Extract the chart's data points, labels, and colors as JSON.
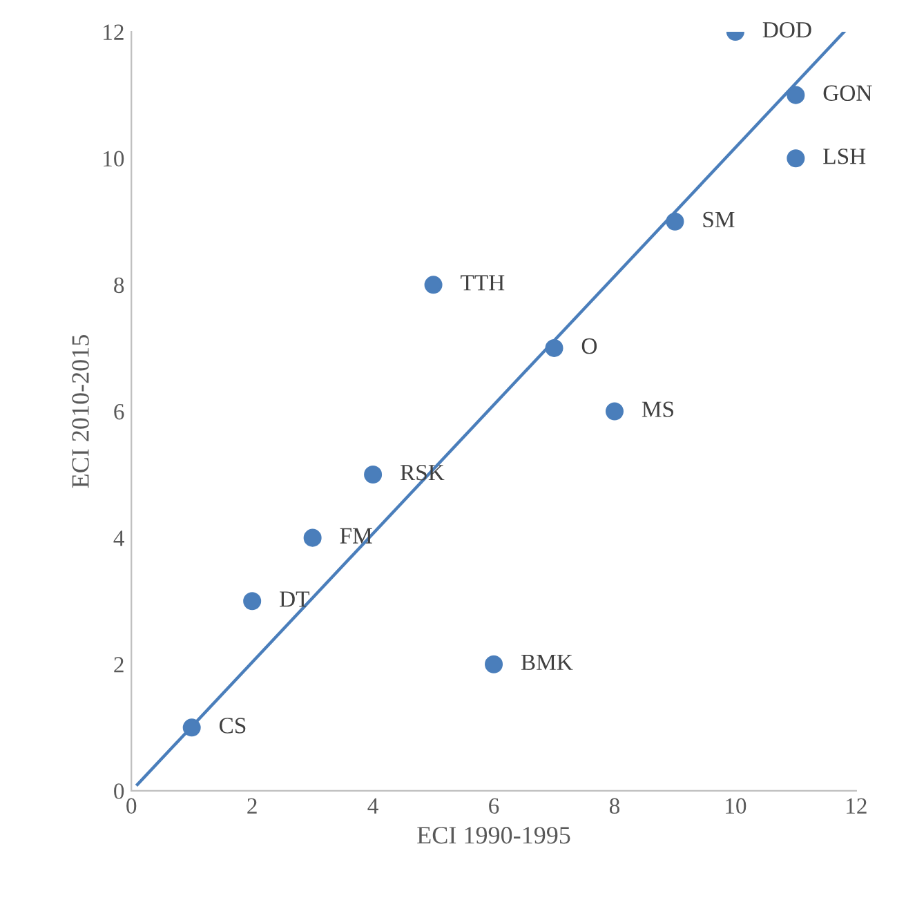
{
  "chart_data": {
    "type": "scatter",
    "xlabel": "ECI 1990-1995",
    "ylabel": "ECI 2010-2015",
    "xlim": [
      0,
      12
    ],
    "ylim": [
      0,
      12
    ],
    "xticks": [
      0,
      2,
      4,
      6,
      8,
      10,
      12
    ],
    "yticks": [
      0,
      2,
      4,
      6,
      8,
      10,
      12
    ],
    "grid": false,
    "legend": false,
    "series": [
      {
        "marker": "circle",
        "color": "#4a7ebb",
        "x": [
          1,
          2,
          3,
          4,
          5,
          6,
          7,
          8,
          9,
          10,
          11,
          11
        ],
        "values": [
          1,
          3,
          4,
          5,
          8,
          2,
          7,
          6,
          9,
          12,
          11,
          10
        ]
      },
      {
        "type": "line",
        "color": "#4a7ebb",
        "x": [
          0.1,
          11.8
        ],
        "values": [
          0.1,
          12
        ]
      }
    ],
    "annotations": [
      {
        "text": "CS",
        "x": 1,
        "y": 1
      },
      {
        "text": "DT",
        "x": 2,
        "y": 3
      },
      {
        "text": "FM",
        "x": 3,
        "y": 4
      },
      {
        "text": "RSK",
        "x": 4,
        "y": 5
      },
      {
        "text": "TTH",
        "x": 5,
        "y": 8
      },
      {
        "text": "BMK",
        "x": 6,
        "y": 2
      },
      {
        "text": "O",
        "x": 7,
        "y": 7
      },
      {
        "text": "MS",
        "x": 8,
        "y": 6
      },
      {
        "text": "SM",
        "x": 9,
        "y": 9
      },
      {
        "text": "DOD",
        "x": 10,
        "y": 12
      },
      {
        "text": "GON",
        "x": 11,
        "y": 11
      },
      {
        "text": "LSH",
        "x": 11,
        "y": 10
      }
    ]
  }
}
